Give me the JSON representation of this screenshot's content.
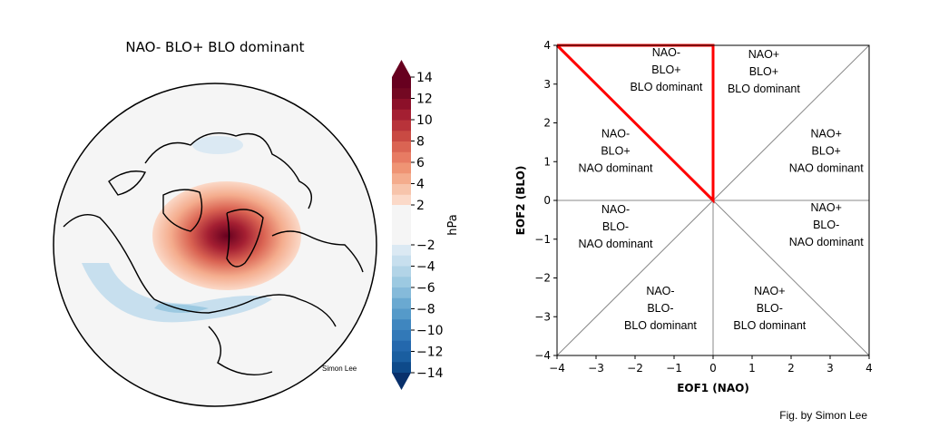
{
  "map_panel": {
    "title": "NAO- BLO+ BLO dominant",
    "credit": "Simon Lee",
    "colorbar": {
      "label": "hPa",
      "ticks": [
        "14",
        "12",
        "10",
        "8",
        "6",
        "4",
        "2",
        "−2",
        "−4",
        "−6",
        "−8",
        "−10",
        "−12",
        "−14"
      ],
      "tick_values": [
        14,
        12,
        10,
        8,
        6,
        4,
        2,
        -2,
        -4,
        -6,
        -8,
        -10,
        -12,
        -14
      ],
      "levels": [
        -14,
        -13,
        -12,
        -11,
        -10,
        -9,
        -8,
        -7,
        -6,
        -5,
        -4,
        -3,
        -2,
        2,
        3,
        4,
        5,
        6,
        7,
        8,
        9,
        10,
        11,
        12,
        13,
        14
      ],
      "neg_colors": [
        "#08306b",
        "#0e4a8a",
        "#1a5ea0",
        "#2468ad",
        "#3279b8",
        "#3f86bf",
        "#559ac9",
        "#6aa9d1",
        "#85bada",
        "#9cc9e1",
        "#b2d4e7",
        "#c7dfee",
        "#dbe9f3"
      ],
      "pos_colors": [
        "#fbd9c8",
        "#f7c4ab",
        "#f4ac8d",
        "#ef9474",
        "#e77b63",
        "#da6453",
        "#c94a43",
        "#b8333a",
        "#a41f32",
        "#8c1029",
        "#730822",
        "#67001f"
      ],
      "neutral_color": "#f5f5f5"
    }
  },
  "chart_data": {
    "type": "line",
    "title": "",
    "xlabel": "EOF1 (NAO)",
    "ylabel": "EOF2 (BLO)",
    "xlim": [
      -4,
      4
    ],
    "ylim": [
      -4,
      4
    ],
    "xticks": [
      "−4",
      "−3",
      "−2",
      "−1",
      "0",
      "1",
      "2",
      "3",
      "4"
    ],
    "xtick_values": [
      -4,
      -3,
      -2,
      -1,
      0,
      1,
      2,
      3,
      4
    ],
    "yticks": [
      "4",
      "3",
      "2",
      "1",
      "0",
      "−1",
      "−2",
      "−3",
      "−4"
    ],
    "ytick_values": [
      4,
      3,
      2,
      1,
      0,
      -1,
      -2,
      -3,
      -4
    ],
    "series": [
      {
        "name": "diagonal y=x",
        "x": [
          -4,
          4
        ],
        "y": [
          -4,
          4
        ],
        "color": "#888888"
      },
      {
        "name": "diagonal y=-x",
        "x": [
          -4,
          4
        ],
        "y": [
          4,
          -4
        ],
        "color": "#888888"
      },
      {
        "name": "x axis",
        "x": [
          -4,
          4
        ],
        "y": [
          0,
          0
        ],
        "color": "#888888"
      },
      {
        "name": "y axis",
        "x": [
          0,
          0
        ],
        "y": [
          -4,
          4
        ],
        "color": "#888888"
      }
    ],
    "highlight": {
      "name": "selected region",
      "x": [
        -4,
        0,
        0,
        -4
      ],
      "y": [
        4,
        4,
        0,
        4
      ],
      "color": "#ff0000"
    },
    "regions": [
      {
        "lines": [
          "NAO-",
          "BLO+",
          "BLO dominant"
        ],
        "x": -1.2,
        "y": 3.3
      },
      {
        "lines": [
          "NAO+",
          "BLO+",
          "BLO dominant"
        ],
        "x": 1.3,
        "y": 3.25
      },
      {
        "lines": [
          "NAO-",
          "BLO+",
          "NAO dominant"
        ],
        "x": -2.5,
        "y": 1.2
      },
      {
        "lines": [
          "NAO+",
          "BLO+",
          "NAO dominant"
        ],
        "x": 2.9,
        "y": 1.2
      },
      {
        "lines": [
          "NAO-",
          "BLO-",
          "NAO dominant"
        ],
        "x": -2.5,
        "y": -0.75
      },
      {
        "lines": [
          "NAO+",
          "BLO-",
          "NAO dominant"
        ],
        "x": 2.9,
        "y": -0.7
      },
      {
        "lines": [
          "NAO-",
          "BLO-",
          "BLO dominant"
        ],
        "x": -1.35,
        "y": -2.85
      },
      {
        "lines": [
          "NAO+",
          "BLO-",
          "BLO dominant"
        ],
        "x": 1.45,
        "y": -2.85
      }
    ]
  },
  "footer": {
    "credit": "Fig. by Simon Lee"
  }
}
